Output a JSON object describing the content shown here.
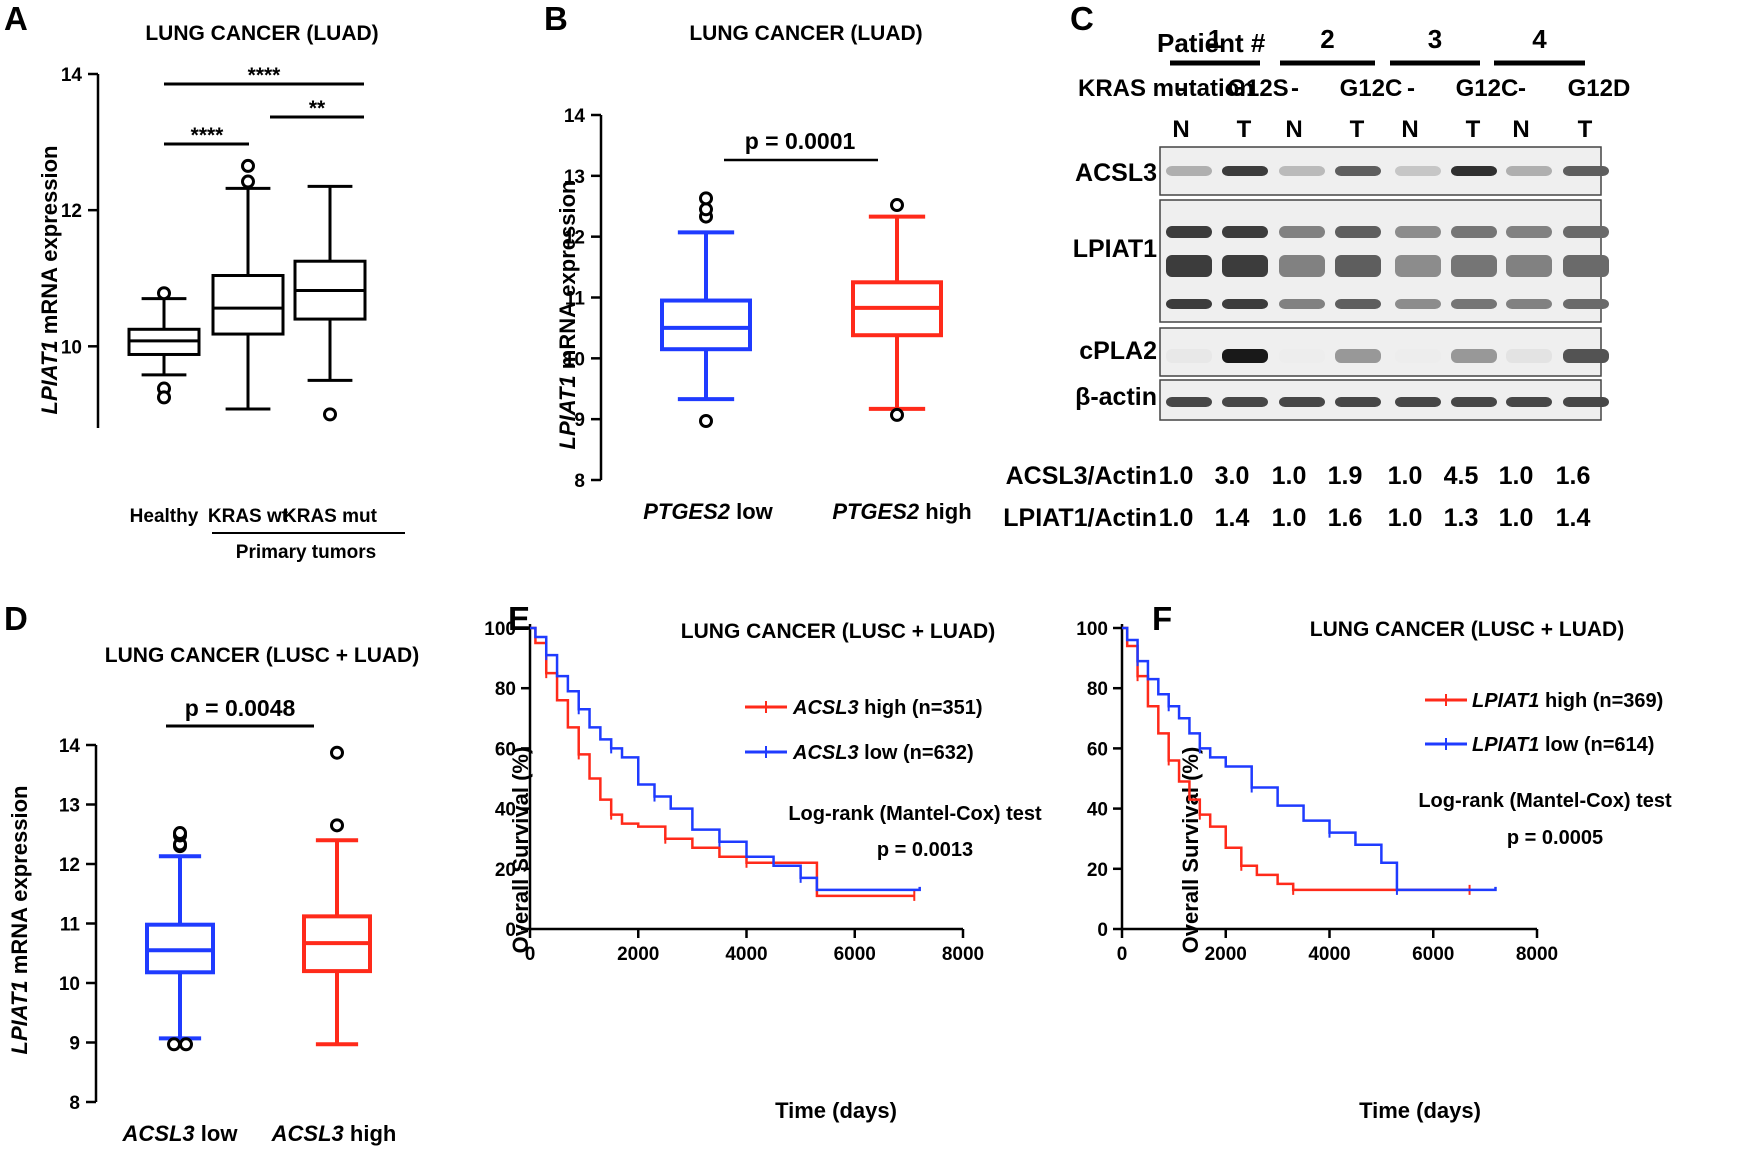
{
  "panels": {
    "A": {
      "label": "A",
      "title": "LUNG CANCER (LUAD)",
      "ylabel_gene": "LPIAT1",
      "ylabel_rest": " mRNA expression",
      "groups": [
        "Healthy",
        "KRAS wt",
        "KRAS mut"
      ],
      "bracket_label": "Primary tumors",
      "sig": [
        "****",
        "****",
        "**"
      ]
    },
    "B": {
      "label": "B",
      "title": "LUNG CANCER (LUAD)",
      "ylabel_gene": "LPIAT1",
      "ylabel_rest": " mRNA expression",
      "groups": [
        {
          "gene": "PTGES2",
          "rest": " low"
        },
        {
          "gene": "PTGES2",
          "rest": " high"
        }
      ],
      "pvalue": "p = 0.0001"
    },
    "C": {
      "label": "C",
      "patient_header": "Patient #",
      "patients": [
        "1",
        "2",
        "3",
        "4"
      ],
      "kras_header": "KRAS mutation",
      "kras": [
        "-",
        "G12S",
        "-",
        "G12C",
        "-",
        "G12C",
        "-",
        "G12D"
      ],
      "lanes": [
        "N",
        "T",
        "N",
        "T",
        "N",
        "T",
        "N",
        "T"
      ],
      "proteins": [
        "ACSL3",
        "LPIAT1",
        "cPLA2",
        "β-actin"
      ],
      "quant": [
        {
          "label": "ACSL3/Actin",
          "values": [
            "1.0",
            "3.0",
            "1.0",
            "1.9",
            "1.0",
            "4.5",
            "1.0",
            "1.6"
          ]
        },
        {
          "label": "LPIAT1/Actin",
          "values": [
            "1.0",
            "1.4",
            "1.0",
            "1.6",
            "1.0",
            "1.3",
            "1.0",
            "1.4"
          ]
        }
      ]
    },
    "D": {
      "label": "D",
      "title": "LUNG CANCER (LUSC + LUAD)",
      "ylabel_gene": "LPIAT1",
      "ylabel_rest": "  mRNA expression",
      "groups": [
        {
          "gene": "ACSL3",
          "rest": " low"
        },
        {
          "gene": "ACSL3",
          "rest": " high"
        }
      ],
      "pvalue": "p = 0.0048"
    },
    "E": {
      "label": "E",
      "title": "LUNG CANCER (LUSC + LUAD)",
      "ylabel": "Overall Survival (%)",
      "xlabel": "Time (days)",
      "legend": [
        {
          "gene": "ACSL3",
          "rest": " high (n=351)"
        },
        {
          "gene": "ACSL3",
          "rest": " low (n=632)"
        }
      ],
      "test": "Log-rank (Mantel-Cox) test",
      "pvalue": "p = 0.0013"
    },
    "F": {
      "label": "F",
      "title": "LUNG CANCER (LUSC + LUAD)",
      "ylabel": "Overall Survival (%)",
      "xlabel": "Time (days)",
      "legend": [
        {
          "gene": "LPIAT1",
          "rest": " high (n=369)"
        },
        {
          "gene": "LPIAT1",
          "rest": " low (n=614)"
        }
      ],
      "test": "Log-rank (Mantel-Cox) test",
      "pvalue": "p = 0.0005"
    }
  },
  "colors": {
    "blue": "#1f3bff",
    "red": "#ff2a1a",
    "black": "#000000"
  },
  "chart_data": [
    {
      "panel": "A",
      "type": "box",
      "title": "LUNG CANCER (LUAD)",
      "ylabel": "LPIAT1 mRNA expression",
      "ylim": [
        8.8,
        14
      ],
      "yticks": [
        10,
        12,
        14
      ],
      "categories": [
        "Healthy",
        "KRAS wt",
        "KRAS mut"
      ],
      "boxes": [
        {
          "whisker_low": 9.58,
          "q1": 9.88,
          "median": 10.08,
          "q3": 10.25,
          "whisker_high": 10.7,
          "outliers": [
            10.78,
            9.38,
            9.25
          ]
        },
        {
          "whisker_low": 9.08,
          "q1": 10.18,
          "median": 10.56,
          "q3": 11.04,
          "whisker_high": 12.32,
          "outliers": [
            12.42,
            12.65
          ]
        },
        {
          "whisker_low": 9.5,
          "q1": 10.4,
          "median": 10.82,
          "q3": 11.25,
          "whisker_high": 12.35,
          "outliers": [
            9.0
          ]
        }
      ],
      "significance": [
        {
          "pair": [
            "Healthy",
            "KRAS mut"
          ],
          "label": "****"
        },
        {
          "pair": [
            "Healthy",
            "KRAS wt"
          ],
          "label": "****"
        },
        {
          "pair": [
            "KRAS wt",
            "KRAS mut"
          ],
          "label": "**"
        }
      ]
    },
    {
      "panel": "B",
      "type": "box",
      "title": "LUNG CANCER (LUAD)",
      "ylabel": "LPIAT1 mRNA expression",
      "ylim": [
        8,
        14
      ],
      "yticks": [
        8,
        9,
        10,
        11,
        12,
        13,
        14
      ],
      "categories": [
        "PTGES2 low",
        "PTGES2 high"
      ],
      "boxes": [
        {
          "whisker_low": 9.33,
          "q1": 10.15,
          "median": 10.5,
          "q3": 10.95,
          "whisker_high": 12.07,
          "outliers": [
            8.97,
            12.33,
            12.45,
            12.63
          ]
        },
        {
          "whisker_low": 9.17,
          "q1": 10.38,
          "median": 10.83,
          "q3": 11.25,
          "whisker_high": 12.33,
          "outliers": [
            9.07,
            12.52
          ]
        }
      ],
      "pvalue": "p = 0.0001"
    },
    {
      "panel": "D",
      "type": "box",
      "title": "LUNG CANCER (LUSC + LUAD)",
      "ylabel": "LPIAT1 mRNA expression",
      "ylim": [
        8,
        14
      ],
      "yticks": [
        8,
        9,
        10,
        11,
        12,
        13,
        14
      ],
      "categories": [
        "ACSL3 low",
        "ACSL3 high"
      ],
      "boxes": [
        {
          "whisker_low": 9.07,
          "q1": 10.18,
          "median": 10.55,
          "q3": 10.98,
          "whisker_high": 12.13,
          "outliers": [
            8.97,
            8.97,
            12.3,
            12.33,
            12.48,
            12.52
          ]
        },
        {
          "whisker_low": 8.97,
          "q1": 10.2,
          "median": 10.67,
          "q3": 11.12,
          "whisker_high": 12.4,
          "outliers": [
            12.65,
            13.87
          ]
        }
      ],
      "pvalue": "p = 0.0048"
    },
    {
      "panel": "E",
      "type": "line",
      "title": "LUNG CANCER (LUSC + LUAD)",
      "xlabel": "Time (days)",
      "ylabel": "Overall Survival (%)",
      "xlim": [
        0,
        8000
      ],
      "ylim": [
        0,
        100
      ],
      "xticks": [
        0,
        2000,
        4000,
        6000,
        8000
      ],
      "yticks": [
        0,
        20,
        40,
        60,
        80,
        100
      ],
      "series": [
        {
          "name": "ACSL3 high (n=351)",
          "color": "red",
          "x": [
            0,
            100,
            300,
            500,
            700,
            900,
            1100,
            1300,
            1500,
            1700,
            2000,
            2500,
            3000,
            3500,
            4000,
            5300,
            5301,
            7100
          ],
          "y": [
            100,
            95,
            85,
            76,
            67,
            58,
            50,
            43,
            38,
            35,
            34,
            30,
            27,
            24,
            22,
            22,
            11,
            11
          ]
        },
        {
          "name": "ACSL3 low (n=632)",
          "color": "blue",
          "x": [
            0,
            100,
            300,
            500,
            700,
            900,
            1100,
            1300,
            1500,
            1700,
            2000,
            2300,
            2600,
            3000,
            3500,
            4000,
            4500,
            5000,
            5300,
            7200
          ],
          "y": [
            100,
            97,
            91,
            84,
            79,
            73,
            67,
            63,
            60,
            57,
            48,
            44,
            40,
            33,
            29,
            24,
            21,
            17,
            13,
            14
          ]
        }
      ],
      "test": "Log-rank (Mantel-Cox) test",
      "pvalue": "p = 0.0013"
    },
    {
      "panel": "F",
      "type": "line",
      "title": "LUNG CANCER (LUSC + LUAD)",
      "xlabel": "Time (days)",
      "ylabel": "Overall Survival (%)",
      "xlim": [
        0,
        8000
      ],
      "ylim": [
        0,
        100
      ],
      "xticks": [
        0,
        2000,
        4000,
        6000,
        8000
      ],
      "yticks": [
        0,
        20,
        40,
        60,
        80,
        100
      ],
      "series": [
        {
          "name": "LPIAT1 high (n=369)",
          "color": "red",
          "x": [
            0,
            100,
            300,
            500,
            700,
            900,
            1100,
            1300,
            1500,
            1700,
            2000,
            2300,
            2600,
            3000,
            3300,
            4000,
            5000,
            6700
          ],
          "y": [
            100,
            94,
            84,
            74,
            65,
            56,
            49,
            43,
            38,
            34,
            27,
            21,
            18,
            15,
            13,
            13,
            13,
            13
          ]
        },
        {
          "name": "LPIAT1 low (n=614)",
          "color": "blue",
          "x": [
            0,
            100,
            300,
            500,
            700,
            900,
            1100,
            1300,
            1500,
            1700,
            2000,
            2500,
            3000,
            3500,
            4000,
            4500,
            5000,
            5300,
            7200
          ],
          "y": [
            100,
            96,
            89,
            83,
            78,
            74,
            70,
            65,
            60,
            57,
            54,
            47,
            41,
            36,
            32,
            28,
            22,
            13,
            14
          ]
        }
      ],
      "test": "Log-rank (Mantel-Cox) test",
      "pvalue": "p = 0.0005"
    }
  ]
}
